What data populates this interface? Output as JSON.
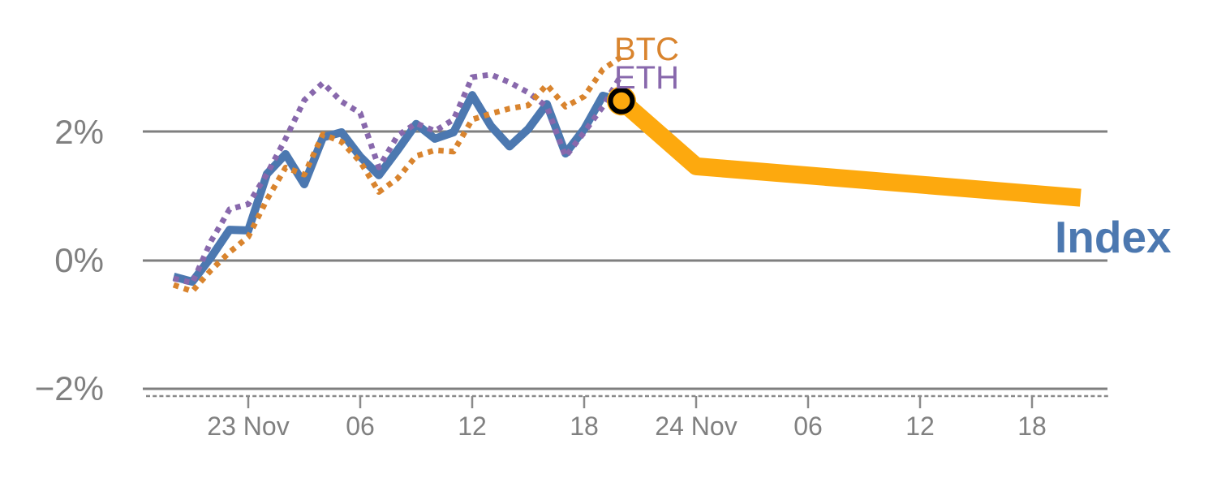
{
  "chart_data": {
    "type": "line",
    "description": "Hourly percent performance of a crypto Index vs BTC and ETH, with a forecast line for the Index",
    "x_axis": {
      "unit": "hours relative to 23 Nov 00:00",
      "tick_hours": [
        0,
        6,
        12,
        18,
        24,
        30,
        36,
        42
      ],
      "tick_labels": [
        "23 Nov",
        "06",
        "12",
        "18",
        "24 Nov",
        "06",
        "12",
        "18"
      ],
      "range_hours": [
        -5.6,
        46.0
      ]
    },
    "y_axis": {
      "tick_values": [
        2,
        0,
        -2
      ],
      "tick_labels": [
        "2%",
        "0%",
        "−2%"
      ],
      "grid": true,
      "range": [
        -2.6,
        3.5
      ]
    },
    "series": [
      {
        "name": "Index",
        "label": "Index",
        "style": "solid",
        "color": "#4c78b0",
        "line_width": 10,
        "hours": [
          -4,
          -3,
          -2,
          -1,
          0,
          1,
          2,
          3,
          4,
          5,
          6,
          7,
          8,
          9,
          10,
          11,
          12,
          13,
          14,
          15,
          16,
          17,
          18,
          19,
          20
        ],
        "values": [
          -0.25,
          -0.33,
          0.05,
          0.48,
          0.47,
          1.35,
          1.66,
          1.19,
          1.92,
          2.0,
          1.62,
          1.33,
          1.72,
          2.13,
          1.9,
          2.0,
          2.58,
          2.1,
          1.78,
          2.05,
          2.44,
          1.67,
          2.05,
          2.57,
          2.49
        ]
      },
      {
        "name": "ETH",
        "label": "ETH",
        "style": "dotted",
        "color": "#8868ac",
        "line_width": 7,
        "hours": [
          -4,
          -3,
          -2,
          -1,
          0,
          1,
          2,
          3,
          4,
          5,
          6,
          7,
          8,
          9,
          10,
          11,
          12,
          13,
          14,
          15,
          16,
          17,
          18,
          19,
          20
        ],
        "values": [
          -0.28,
          -0.35,
          0.3,
          0.8,
          0.88,
          1.35,
          1.9,
          2.5,
          2.77,
          2.48,
          2.3,
          1.45,
          1.95,
          2.14,
          2.02,
          2.2,
          2.86,
          2.9,
          2.78,
          2.62,
          2.4,
          1.62,
          2.0,
          2.4,
          2.9
        ]
      },
      {
        "name": "BTC",
        "label": "BTC",
        "style": "dotted",
        "color": "#d9842e",
        "line_width": 7,
        "hours": [
          -4,
          -3,
          -2,
          -1,
          0,
          1,
          2,
          3,
          4,
          5,
          6,
          7,
          8,
          9,
          10,
          11,
          12,
          13,
          14,
          15,
          16,
          17,
          18,
          19,
          20
        ],
        "values": [
          -0.38,
          -0.48,
          -0.15,
          0.13,
          0.37,
          0.95,
          1.45,
          1.34,
          1.97,
          1.85,
          1.54,
          1.07,
          1.28,
          1.63,
          1.72,
          1.7,
          2.2,
          2.29,
          2.37,
          2.42,
          2.74,
          2.4,
          2.56,
          2.98,
          3.18
        ]
      }
    ],
    "forecast": {
      "name": "Index forecast",
      "style": "solid",
      "color": "#fda90e",
      "line_width": 22,
      "hours": [
        20,
        24,
        44.6
      ],
      "values": [
        2.49,
        1.47,
        0.98
      ]
    },
    "end_marker": {
      "series": "Index",
      "hour": 20,
      "value": 2.49,
      "shape": "open-circle",
      "ring_color": "#000000",
      "fill_color": "#fda90e"
    }
  },
  "colors": {
    "grid": "#7f7f7f",
    "axis": "#8a8a8a",
    "tick_text": "#808080",
    "background": "#ffffff"
  }
}
